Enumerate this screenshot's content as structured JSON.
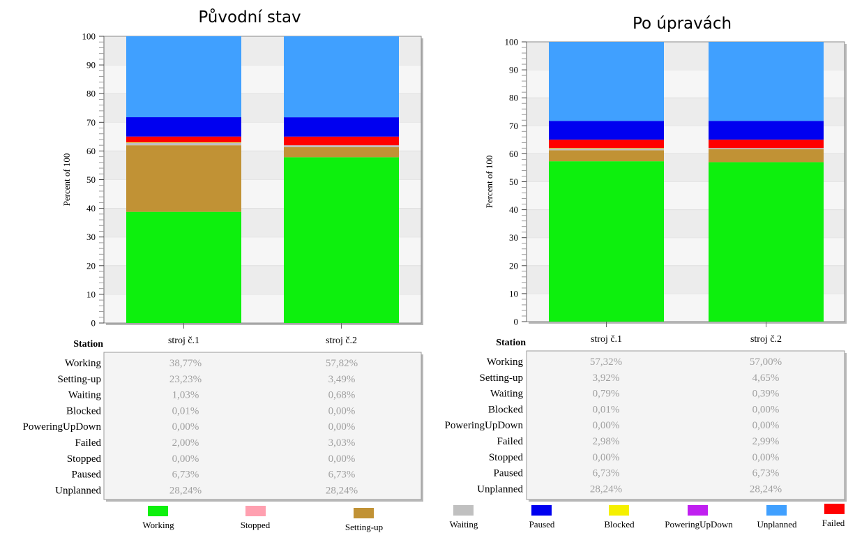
{
  "legend": {
    "items": [
      {
        "key": "working",
        "label": "Working",
        "color": "#0df00d"
      },
      {
        "key": "stopped",
        "label": "Stopped",
        "color": "#ffa0b0"
      },
      {
        "key": "setting_up",
        "label": "Setting-up",
        "color": "#c19235"
      },
      {
        "key": "waiting",
        "label": "Waiting",
        "color": "#c0c0c0"
      },
      {
        "key": "paused",
        "label": "Paused",
        "color": "#0000f0"
      },
      {
        "key": "blocked",
        "label": "Blocked",
        "color": "#f5f000"
      },
      {
        "key": "powering",
        "label": "PoweringUpDown",
        "color": "#c020f0"
      },
      {
        "key": "unplanned",
        "label": "Unplanned",
        "color": "#40a0ff"
      },
      {
        "key": "failed",
        "label": "Failed",
        "color": "#ff0000"
      }
    ]
  },
  "chart_data": [
    {
      "type": "bar",
      "stacked": true,
      "title": "Původní stav",
      "xlabel": "Station",
      "ylabel": "Percent of 100",
      "ylim": [
        0,
        100
      ],
      "yticks": [
        "0",
        "10",
        "20",
        "30",
        "40",
        "50",
        "60",
        "70",
        "80",
        "90",
        "100"
      ],
      "grid": true,
      "categories": [
        "stroj č.1",
        "stroj č.2"
      ],
      "stack_order": [
        "Working",
        "Setting-up",
        "Waiting",
        "Blocked",
        "PoweringUpDown",
        "Stopped",
        "Failed",
        "Paused",
        "Unplanned"
      ],
      "series": [
        {
          "name": "Working",
          "values": [
            38.77,
            57.82
          ],
          "labels": [
            "38,77%",
            "57,82%"
          ]
        },
        {
          "name": "Setting-up",
          "values": [
            23.23,
            3.49
          ],
          "labels": [
            "23,23%",
            "3,49%"
          ]
        },
        {
          "name": "Waiting",
          "values": [
            1.03,
            0.68
          ],
          "labels": [
            "1,03%",
            "0,68%"
          ]
        },
        {
          "name": "Blocked",
          "values": [
            0.01,
            0.0
          ],
          "labels": [
            "0,01%",
            "0,00%"
          ]
        },
        {
          "name": "PoweringUpDown",
          "values": [
            0.0,
            0.0
          ],
          "labels": [
            "0,00%",
            "0,00%"
          ]
        },
        {
          "name": "Failed",
          "values": [
            2.0,
            3.03
          ],
          "labels": [
            "2,00%",
            "3,03%"
          ]
        },
        {
          "name": "Stopped",
          "values": [
            0.0,
            0.0
          ],
          "labels": [
            "0,00%",
            "0,00%"
          ]
        },
        {
          "name": "Paused",
          "values": [
            6.73,
            6.73
          ],
          "labels": [
            "6,73%",
            "6,73%"
          ]
        },
        {
          "name": "Unplanned",
          "values": [
            28.24,
            28.24
          ],
          "labels": [
            "28,24%",
            "28,24%"
          ]
        }
      ]
    },
    {
      "type": "bar",
      "stacked": true,
      "title": "Po úpravách",
      "xlabel": "Station",
      "ylabel": "Percent of 100",
      "ylim": [
        0,
        100
      ],
      "yticks": [
        "0",
        "10",
        "20",
        "30",
        "40",
        "50",
        "60",
        "70",
        "80",
        "90",
        "100"
      ],
      "grid": true,
      "categories": [
        "stroj č.1",
        "stroj č.2"
      ],
      "stack_order": [
        "Working",
        "Setting-up",
        "Waiting",
        "Blocked",
        "PoweringUpDown",
        "Stopped",
        "Failed",
        "Paused",
        "Unplanned"
      ],
      "series": [
        {
          "name": "Working",
          "values": [
            57.32,
            57.0
          ],
          "labels": [
            "57,32%",
            "57,00%"
          ]
        },
        {
          "name": "Setting-up",
          "values": [
            3.92,
            4.65
          ],
          "labels": [
            "3,92%",
            "4,65%"
          ]
        },
        {
          "name": "Waiting",
          "values": [
            0.79,
            0.39
          ],
          "labels": [
            "0,79%",
            "0,39%"
          ]
        },
        {
          "name": "Blocked",
          "values": [
            0.01,
            0.0
          ],
          "labels": [
            "0,01%",
            "0,00%"
          ]
        },
        {
          "name": "PoweringUpDown",
          "values": [
            0.0,
            0.0
          ],
          "labels": [
            "0,00%",
            "0,00%"
          ]
        },
        {
          "name": "Failed",
          "values": [
            2.98,
            2.99
          ],
          "labels": [
            "2,98%",
            "2,99%"
          ]
        },
        {
          "name": "Stopped",
          "values": [
            0.0,
            0.0
          ],
          "labels": [
            "0,00%",
            "0,00%"
          ]
        },
        {
          "name": "Paused",
          "values": [
            6.73,
            6.73
          ],
          "labels": [
            "6,73%",
            "6,73%"
          ]
        },
        {
          "name": "Unplanned",
          "values": [
            28.24,
            28.24
          ],
          "labels": [
            "28,24%",
            "28,24%"
          ]
        }
      ]
    }
  ]
}
